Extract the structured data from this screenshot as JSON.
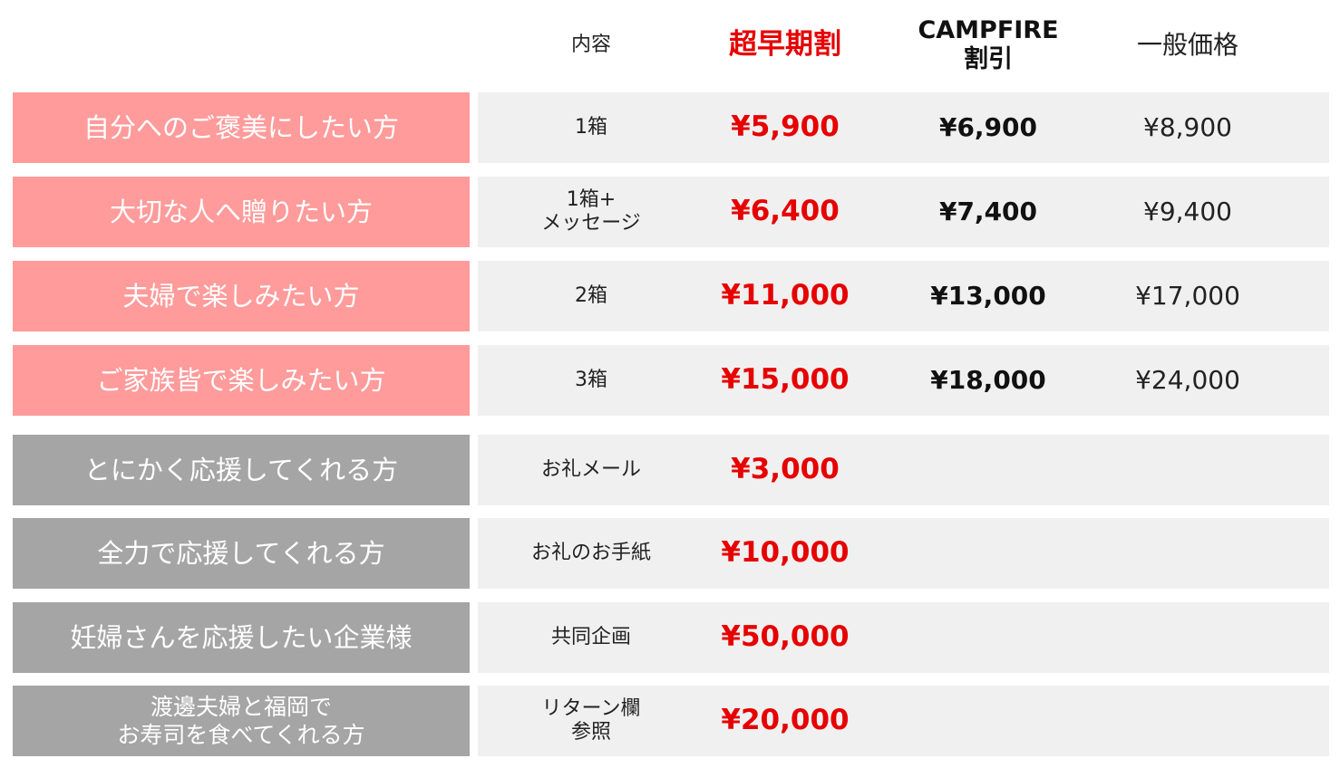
{
  "table": {
    "header": [
      "内容",
      "超早期割",
      "CAMPFIRE\n割引",
      "一般価格"
    ],
    "rows": [
      {
        "label": "自分へのご褒美にしたい方",
        "content": "1箱",
        "early": "¥5,900",
        "campfire": "¥6,900",
        "general": "¥8,900"
      },
      {
        "label": "大切な人へ贈りたい方",
        "content": "1箱+\nメッセージ",
        "early": "¥6,400",
        "campfire": "¥7,400",
        "general": "¥9,400"
      },
      {
        "label": "夫婦で楽しみたい方",
        "content": "2箱",
        "early": "¥11,000",
        "campfire": "¥13,000",
        "general": "¥17,000"
      },
      {
        "label": "ご家族皆で楽しみたい方",
        "content": "3箱",
        "early": "¥15,000",
        "campfire": "¥18,000",
        "general": "¥24,000"
      },
      {
        "label": "とにかく応援してくれる方",
        "content": "お礼メール",
        "early": "¥3,000"
      },
      {
        "label": "全力で応援してくれる方",
        "content": "お礼のお手紙",
        "early": "¥10,000"
      },
      {
        "label": "妊婦さんを応援したい企業様",
        "content": "共同企画",
        "early": "¥50,000"
      },
      {
        "label": "渡邊夫婦と福岡で\nお寿司を食べてくれる方",
        "content": "リターン欄\n参照",
        "early": "¥20,000"
      }
    ]
  }
}
